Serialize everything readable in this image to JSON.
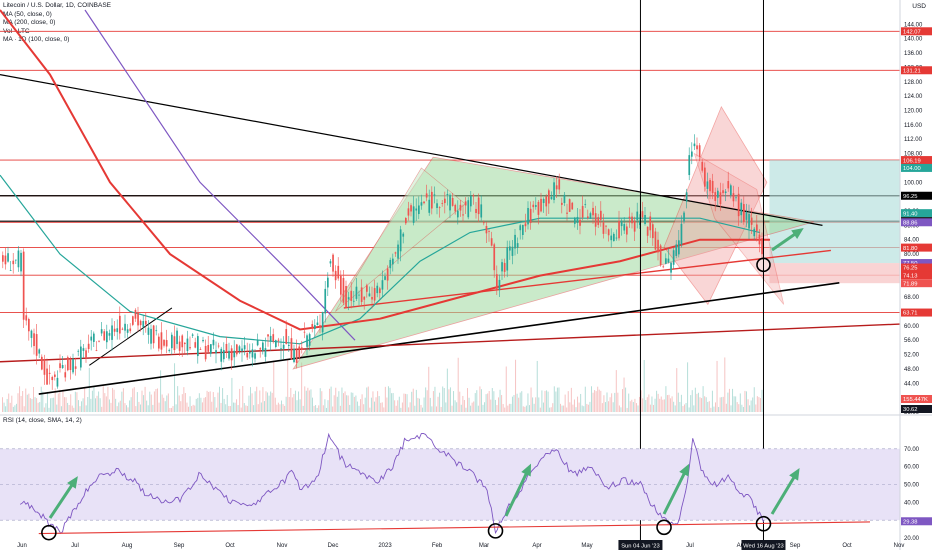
{
  "legend": {
    "title": "Litecoin / U.S. Dollar, 1D, COINBASE",
    "ma50": "MA (50, close, 0)",
    "ma200": "MA (200, close, 0)",
    "vol": "Vol · LTC",
    "ma1d": "MA · 1D (100, close, 0)",
    "rsi": "RSI (14, close, SMA, 14, 2)",
    "currency": "USD"
  },
  "colors": {
    "candle_up": "#26a69a",
    "candle_down": "#ef5350",
    "ma50": "#7e57c2",
    "ma200": "#e53935",
    "ma100": "#26a69a",
    "trend_black": "#000000",
    "level_red": "#e53935",
    "rsi_line": "#7e57c2",
    "rsi_band": "#e8e2f7",
    "arrow": "#4caf78",
    "triangle_fill": "#9fd99f",
    "channel_fill": "#f3a5a5",
    "target_fill": "#b2dfdb"
  },
  "chart_data": [
    {
      "type": "line",
      "title": "Litecoin / U.S. Dollar, 1D, COINBASE",
      "price_scale": [
        36,
        148
      ],
      "price_ticks": [
        36,
        40,
        44,
        48,
        52,
        56,
        60,
        64,
        68,
        72,
        76,
        80,
        84,
        88,
        92,
        96,
        100,
        104,
        108,
        112,
        116,
        120,
        124,
        128,
        132,
        136,
        140,
        144
      ],
      "x_tick_labels": [
        "Jun",
        "Jul",
        "Aug",
        "Sep",
        "Oct",
        "Nov",
        "Dec",
        "2023",
        "Feb",
        "Mar",
        "Apr",
        "May",
        "Jul",
        "Aug",
        "Sep",
        "Oct",
        "Nov"
      ],
      "series": [
        {
          "name": "Litecoin / U.S. Dollar",
          "x": [
            "2022-06-01",
            "2022-06-10",
            "2022-06-18",
            "2022-06-25",
            "2022-07-02",
            "2022-07-10",
            "2022-07-18",
            "2022-07-28",
            "2022-08-08",
            "2022-08-15",
            "2022-08-25",
            "2022-09-05",
            "2022-09-15",
            "2022-09-25",
            "2022-10-05",
            "2022-10-15",
            "2022-10-25",
            "2022-11-05",
            "2022-11-09",
            "2022-11-15",
            "2022-11-25",
            "2022-12-01",
            "2022-12-10",
            "2022-12-20",
            "2022-12-30",
            "2023-01-08",
            "2023-01-15",
            "2023-01-25",
            "2023-02-05",
            "2023-02-15",
            "2023-02-25",
            "2023-03-05",
            "2023-03-10",
            "2023-03-18",
            "2023-03-28",
            "2023-04-05",
            "2023-04-15",
            "2023-04-25",
            "2023-05-05",
            "2023-05-15",
            "2023-05-25",
            "2023-06-04",
            "2023-06-10",
            "2023-06-18",
            "2023-06-26",
            "2023-07-02",
            "2023-07-05",
            "2023-07-10",
            "2023-07-18",
            "2023-07-26",
            "2023-08-02",
            "2023-08-08",
            "2023-08-16"
          ],
          "values": [
            62,
            54,
            44,
            48,
            50,
            53,
            57,
            60,
            62,
            58,
            56,
            56,
            54,
            53,
            53,
            52,
            55,
            57,
            50,
            56,
            60,
            78,
            68,
            68,
            70,
            78,
            90,
            94,
            96,
            92,
            94,
            88,
            70,
            82,
            90,
            94,
            98,
            90,
            92,
            86,
            88,
            90,
            86,
            76,
            82,
            104,
            114,
            102,
            96,
            98,
            92,
            88,
            78
          ]
        }
      ],
      "horizontal_levels": [
        142.07,
        131.21,
        106.19,
        96.25,
        88.86,
        81.8,
        74.13,
        63.71
      ],
      "price_labels": [
        {
          "text": "142.07",
          "color": "#e53935"
        },
        {
          "text": "131.21",
          "color": "#e53935"
        },
        {
          "text": "106.19",
          "color": "#e53935"
        },
        {
          "text": "104.00",
          "color": "#26a69a"
        },
        {
          "text": "96.25",
          "color": "#000000"
        },
        {
          "text": "91.40",
          "color": "#26a69a"
        },
        {
          "text": "89.16",
          "color": "#000000"
        },
        {
          "text": "88.86",
          "color": "#7e57c2"
        },
        {
          "text": "81.80",
          "color": "#e53935"
        },
        {
          "text": "77.50",
          "color": "#7e57c2"
        },
        {
          "text": "76.25",
          "color": "#e53935"
        },
        {
          "text": "74.13",
          "color": "#e53935"
        },
        {
          "text": "71.89",
          "color": "#ef5350"
        },
        {
          "text": "63.71",
          "color": "#e53935"
        },
        {
          "text": "155.447K",
          "color": "#ef5350"
        },
        {
          "text": "30.62",
          "color": "#131722"
        }
      ],
      "date_labels": [
        "Sun 04 Jun '23",
        "Wed 16 Aug '23"
      ]
    },
    {
      "type": "line",
      "title": "RSI (14, close, SMA, 14, 2)",
      "ylim": [
        20,
        80
      ],
      "ticks": [
        20,
        30,
        40,
        50,
        60,
        70
      ],
      "band": [
        30,
        70
      ],
      "current_value": "29.38",
      "series": [
        {
          "name": "RSI",
          "values": [
            40,
            36,
            28,
            23,
            34,
            46,
            55,
            58,
            52,
            44,
            40,
            42,
            55,
            48,
            40,
            38,
            44,
            52,
            58,
            46,
            56,
            78,
            62,
            56,
            52,
            60,
            74,
            78,
            70,
            62,
            55,
            48,
            24,
            38,
            52,
            64,
            70,
            55,
            60,
            48,
            52,
            50,
            40,
            30,
            28,
            52,
            76,
            58,
            50,
            54,
            46,
            42,
            29
          ]
        }
      ]
    }
  ]
}
